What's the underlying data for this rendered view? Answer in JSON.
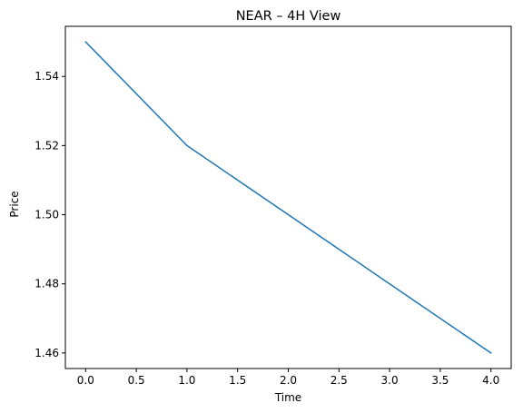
{
  "chart_data": {
    "type": "line",
    "title": "NEAR – 4H View",
    "xlabel": "Time",
    "ylabel": "Price",
    "x": [
      0,
      1,
      2,
      3,
      4
    ],
    "series": [
      {
        "values": [
          1.55,
          1.52,
          1.5,
          1.48,
          1.46
        ],
        "color": "#1f77b4"
      }
    ],
    "xlim": [
      -0.2,
      4.2
    ],
    "ylim": [
      1.4555,
      1.5545
    ],
    "xticks": [
      0.0,
      0.5,
      1.0,
      1.5,
      2.0,
      2.5,
      3.0,
      3.5,
      4.0
    ],
    "xtick_labels": [
      "0.0",
      "0.5",
      "1.0",
      "1.5",
      "2.0",
      "2.5",
      "3.0",
      "3.5",
      "4.0"
    ],
    "yticks": [
      1.46,
      1.48,
      1.5,
      1.52,
      1.54
    ],
    "ytick_labels": [
      "1.46",
      "1.48",
      "1.50",
      "1.52",
      "1.54"
    ],
    "grid": false,
    "legend": "none"
  }
}
